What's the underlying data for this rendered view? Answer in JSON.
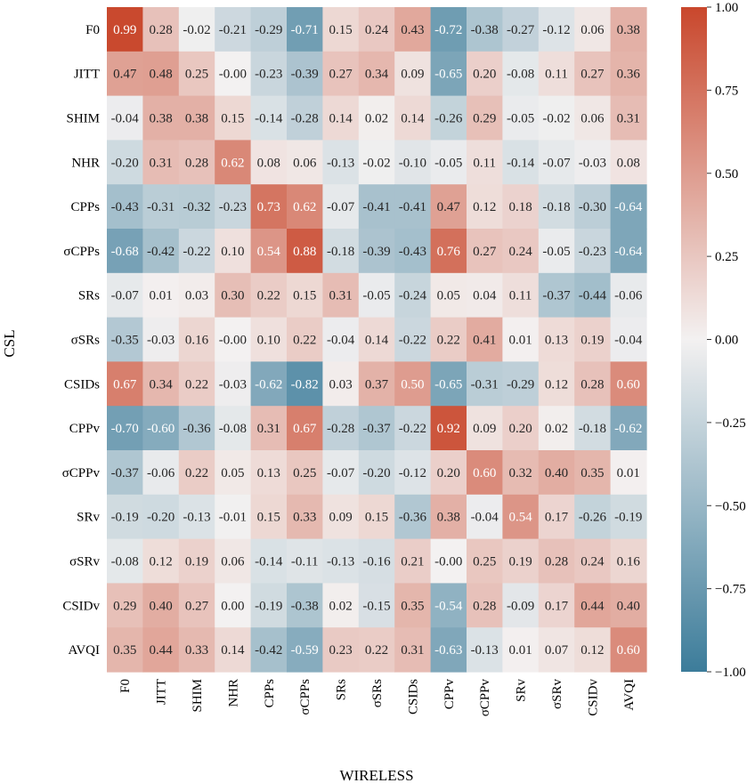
{
  "chart_data": {
    "type": "heatmap",
    "title": "",
    "xlabel": "WIRELESS",
    "ylabel": "CSL",
    "x_categories": [
      "F0",
      "JITT",
      "SHIM",
      "NHR",
      "CPPs",
      "σCPPs",
      "SRs",
      "σSRs",
      "CSIDs",
      "CPPv",
      "σCPPv",
      "SRv",
      "σSRv",
      "CSIDv",
      "AVQI"
    ],
    "y_categories": [
      "F0",
      "JITT",
      "SHIM",
      "NHR",
      "CPPs",
      "σCPPs",
      "SRs",
      "σSRs",
      "CSIDs",
      "CPPv",
      "σCPPv",
      "SRv",
      "σSRv",
      "CSIDv",
      "AVQI"
    ],
    "values": [
      [
        0.99,
        0.28,
        -0.02,
        -0.21,
        -0.29,
        -0.71,
        0.15,
        0.24,
        0.43,
        -0.72,
        -0.38,
        -0.27,
        -0.12,
        0.06,
        0.38
      ],
      [
        0.47,
        0.48,
        0.25,
        -0.0,
        -0.23,
        -0.39,
        0.27,
        0.34,
        0.09,
        -0.65,
        0.2,
        -0.08,
        0.11,
        0.27,
        0.36
      ],
      [
        -0.04,
        0.38,
        0.38,
        0.15,
        -0.14,
        -0.28,
        0.14,
        0.02,
        0.14,
        -0.26,
        0.29,
        -0.05,
        -0.02,
        0.06,
        0.31
      ],
      [
        -0.2,
        0.31,
        0.28,
        0.62,
        0.08,
        0.06,
        -0.13,
        -0.02,
        -0.1,
        -0.05,
        0.11,
        -0.14,
        -0.07,
        -0.03,
        0.08
      ],
      [
        -0.43,
        -0.31,
        -0.32,
        -0.23,
        0.73,
        0.62,
        -0.07,
        -0.41,
        -0.41,
        0.47,
        0.12,
        0.18,
        -0.18,
        -0.3,
        -0.64
      ],
      [
        -0.68,
        -0.42,
        -0.22,
        0.1,
        0.54,
        0.88,
        -0.18,
        -0.39,
        -0.43,
        0.76,
        0.27,
        0.24,
        -0.05,
        -0.23,
        -0.64
      ],
      [
        -0.07,
        0.01,
        0.03,
        0.3,
        0.22,
        0.15,
        0.31,
        -0.05,
        -0.24,
        0.05,
        0.04,
        0.11,
        -0.37,
        -0.44,
        -0.06
      ],
      [
        -0.35,
        -0.03,
        0.16,
        -0.0,
        0.1,
        0.22,
        -0.04,
        0.14,
        -0.22,
        0.22,
        0.41,
        0.01,
        0.13,
        0.19,
        -0.04
      ],
      [
        0.67,
        0.34,
        0.22,
        -0.03,
        -0.62,
        -0.82,
        0.03,
        0.37,
        0.5,
        -0.65,
        -0.31,
        -0.29,
        0.12,
        0.28,
        0.6
      ],
      [
        -0.7,
        -0.6,
        -0.36,
        -0.08,
        0.31,
        0.67,
        -0.28,
        -0.37,
        -0.22,
        0.92,
        0.09,
        0.2,
        0.02,
        -0.18,
        -0.62
      ],
      [
        -0.37,
        -0.06,
        0.22,
        0.05,
        0.13,
        0.25,
        -0.07,
        -0.2,
        -0.12,
        0.2,
        0.6,
        0.32,
        0.4,
        0.35,
        0.01
      ],
      [
        -0.19,
        -0.2,
        -0.13,
        -0.01,
        0.15,
        0.33,
        0.09,
        0.15,
        -0.36,
        0.38,
        -0.04,
        0.54,
        0.17,
        -0.26,
        -0.19
      ],
      [
        -0.08,
        0.12,
        0.19,
        0.06,
        -0.14,
        -0.11,
        -0.13,
        -0.16,
        0.21,
        -0.0,
        0.25,
        0.19,
        0.28,
        0.24,
        0.16
      ],
      [
        0.29,
        0.4,
        0.27,
        0.0,
        -0.19,
        -0.38,
        0.02,
        -0.15,
        0.35,
        -0.54,
        0.28,
        -0.09,
        0.17,
        0.44,
        0.4
      ],
      [
        0.35,
        0.44,
        0.33,
        0.14,
        -0.42,
        -0.59,
        0.23,
        0.22,
        0.31,
        -0.63,
        -0.13,
        0.01,
        0.07,
        0.12,
        0.6
      ]
    ],
    "value_labels": [
      [
        "0.99",
        "0.28",
        "-0.02",
        "-0.21",
        "-0.29",
        "-0.71",
        "0.15",
        "0.24",
        "0.43",
        "-0.72",
        "-0.38",
        "-0.27",
        "-0.12",
        "0.06",
        "0.38"
      ],
      [
        "0.47",
        "0.48",
        "0.25",
        "-0.00",
        "-0.23",
        "-0.39",
        "0.27",
        "0.34",
        "0.09",
        "-0.65",
        "0.20",
        "-0.08",
        "0.11",
        "0.27",
        "0.36"
      ],
      [
        "-0.04",
        "0.38",
        "0.38",
        "0.15",
        "-0.14",
        "-0.28",
        "0.14",
        "0.02",
        "0.14",
        "-0.26",
        "0.29",
        "-0.05",
        "-0.02",
        "0.06",
        "0.31"
      ],
      [
        "-0.20",
        "0.31",
        "0.28",
        "0.62",
        "0.08",
        "0.06",
        "-0.13",
        "-0.02",
        "-0.10",
        "-0.05",
        "0.11",
        "-0.14",
        "-0.07",
        "-0.03",
        "0.08"
      ],
      [
        "-0.43",
        "-0.31",
        "-0.32",
        "-0.23",
        "0.73",
        "0.62",
        "-0.07",
        "-0.41",
        "-0.41",
        "0.47",
        "0.12",
        "0.18",
        "-0.18",
        "-0.30",
        "-0.64"
      ],
      [
        "-0.68",
        "-0.42",
        "-0.22",
        "0.10",
        "0.54",
        "0.88",
        "-0.18",
        "-0.39",
        "-0.43",
        "0.76",
        "0.27",
        "0.24",
        "-0.05",
        "-0.23",
        "-0.64"
      ],
      [
        "-0.07",
        "0.01",
        "0.03",
        "0.30",
        "0.22",
        "0.15",
        "0.31",
        "-0.05",
        "-0.24",
        "0.05",
        "0.04",
        "0.11",
        "-0.37",
        "-0.44",
        "-0.06"
      ],
      [
        "-0.35",
        "-0.03",
        "0.16",
        "-0.00",
        "0.10",
        "0.22",
        "-0.04",
        "0.14",
        "-0.22",
        "0.22",
        "0.41",
        "0.01",
        "0.13",
        "0.19",
        "-0.04"
      ],
      [
        "0.67",
        "0.34",
        "0.22",
        "-0.03",
        "-0.62",
        "-0.82",
        "0.03",
        "0.37",
        "0.50",
        "-0.65",
        "-0.31",
        "-0.29",
        "0.12",
        "0.28",
        "0.60"
      ],
      [
        "-0.70",
        "-0.60",
        "-0.36",
        "-0.08",
        "0.31",
        "0.67",
        "-0.28",
        "-0.37",
        "-0.22",
        "0.92",
        "0.09",
        "0.20",
        "0.02",
        "-0.18",
        "-0.62"
      ],
      [
        "-0.37",
        "-0.06",
        "0.22",
        "0.05",
        "0.13",
        "0.25",
        "-0.07",
        "-0.20",
        "-0.12",
        "0.20",
        "0.60",
        "0.32",
        "0.40",
        "0.35",
        "0.01"
      ],
      [
        "-0.19",
        "-0.20",
        "-0.13",
        "-0.01",
        "0.15",
        "0.33",
        "0.09",
        "0.15",
        "-0.36",
        "0.38",
        "-0.04",
        "0.54",
        "0.17",
        "-0.26",
        "-0.19"
      ],
      [
        "-0.08",
        "0.12",
        "0.19",
        "0.06",
        "-0.14",
        "-0.11",
        "-0.13",
        "-0.16",
        "0.21",
        "-0.00",
        "0.25",
        "0.19",
        "0.28",
        "0.24",
        "0.16"
      ],
      [
        "0.29",
        "0.40",
        "0.27",
        "0.00",
        "-0.19",
        "-0.38",
        "0.02",
        "-0.15",
        "0.35",
        "-0.54",
        "0.28",
        "-0.09",
        "0.17",
        "0.44",
        "0.40"
      ],
      [
        "0.35",
        "0.44",
        "0.33",
        "0.14",
        "-0.42",
        "-0.59",
        "0.23",
        "0.22",
        "0.31",
        "-0.63",
        "-0.13",
        "0.01",
        "0.07",
        "0.12",
        "0.60"
      ]
    ],
    "colorbar": {
      "vmin": -1.0,
      "vmax": 1.0,
      "ticks": [
        -1.0,
        -0.75,
        -0.5,
        -0.25,
        0.0,
        0.25,
        0.5,
        0.75,
        1.0
      ],
      "tick_labels": [
        "−1.00",
        "−0.75",
        "−0.50",
        "−0.25",
        "0.00",
        "0.25",
        "0.50",
        "0.75",
        "1.00"
      ],
      "colors": {
        "negative": "#3c7c9a",
        "zero": "#f3f1f1",
        "positive": "#c9472c"
      }
    },
    "grid": false,
    "legend": "colorbar-right"
  }
}
